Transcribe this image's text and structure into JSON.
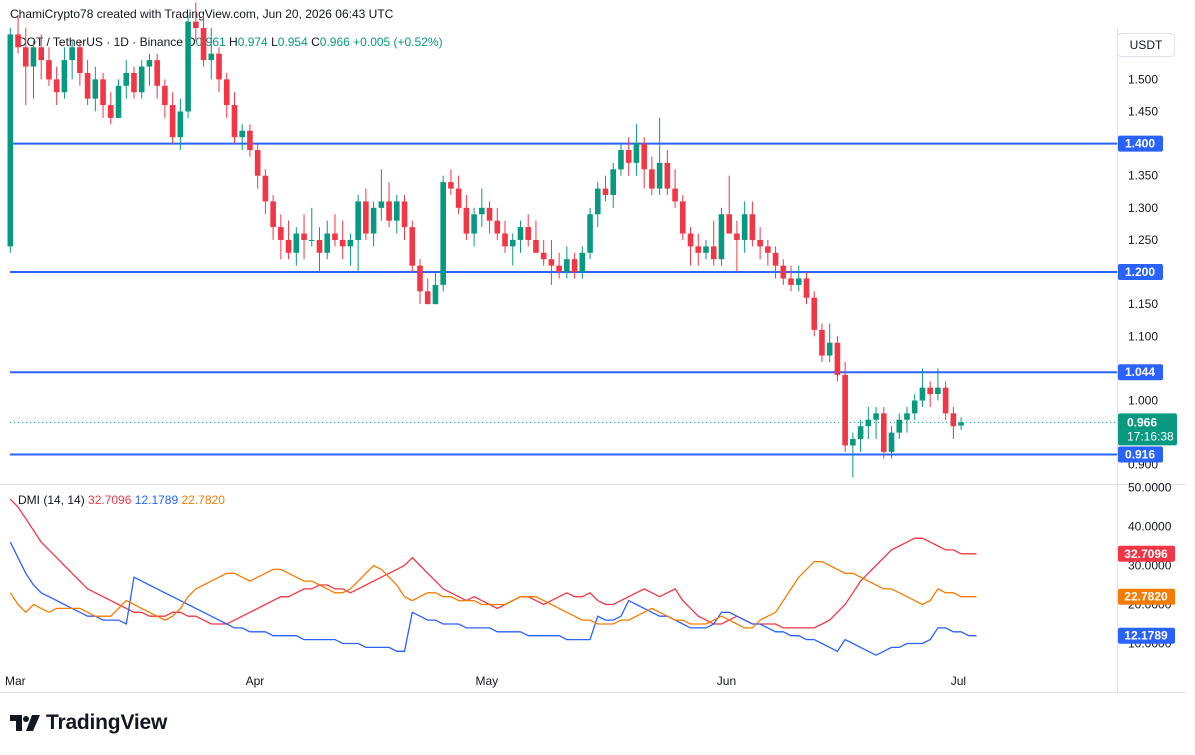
{
  "header": {
    "text": "ChamiCrypto78 created with TradingView.com, Jun 20, 2026 06:43 UTC"
  },
  "legend": {
    "symbol": "DOT / TetherUS · 1D · Binance",
    "o_label": "O",
    "o": "0.961",
    "h_label": "H",
    "h": "0.974",
    "l_label": "L",
    "l": "0.954",
    "c_label": "C",
    "c": "0.966",
    "change": "+0.005 (+0.52%)"
  },
  "currency": "USDT",
  "dmi_legend": {
    "name": "DMI (14, 14)",
    "v1": "32.7096",
    "v2": "12.1789",
    "v3": "22.7820"
  },
  "logo": {
    "text": "TradingView"
  },
  "colors": {
    "up": "#089981",
    "down": "#f23645",
    "level": "#2962ff",
    "di_plus": "#2962ff",
    "di_minus": "#f23645",
    "adx": "#f57c00"
  },
  "chart_data": [
    {
      "type": "candlestick",
      "title": "DOT / TetherUS · 1D · Binance",
      "ylim": [
        0.87,
        1.58
      ],
      "y_ticks": [
        "1.500",
        "1.450",
        "1.350",
        "1.300",
        "1.250",
        "1.150",
        "1.100",
        "1.000",
        "0.900"
      ],
      "x_ticks": [
        "Mar",
        "Apr",
        "May",
        "Jun",
        "Jul"
      ],
      "x_tick_days": [
        0,
        31,
        61,
        92,
        122
      ],
      "start_date": "2026-02-26",
      "horizontal_levels": [
        1.4,
        1.2,
        1.044,
        0.916
      ],
      "level_labels": [
        "1.400",
        "1.200",
        "1.044",
        "0.916"
      ],
      "last_price": "0.966",
      "countdown": "17:16:38",
      "candles": [
        [
          1.24,
          1.58,
          1.23,
          1.57
        ],
        [
          1.57,
          1.6,
          1.54,
          1.55
        ],
        [
          1.55,
          1.58,
          1.46,
          1.52
        ],
        [
          1.52,
          1.56,
          1.47,
          1.55
        ],
        [
          1.55,
          1.57,
          1.5,
          1.53
        ],
        [
          1.53,
          1.55,
          1.49,
          1.5
        ],
        [
          1.5,
          1.52,
          1.46,
          1.48
        ],
        [
          1.48,
          1.55,
          1.47,
          1.53
        ],
        [
          1.53,
          1.56,
          1.5,
          1.55
        ],
        [
          1.55,
          1.56,
          1.49,
          1.51
        ],
        [
          1.51,
          1.53,
          1.46,
          1.47
        ],
        [
          1.47,
          1.52,
          1.45,
          1.5
        ],
        [
          1.5,
          1.51,
          1.44,
          1.46
        ],
        [
          1.46,
          1.48,
          1.43,
          1.44
        ],
        [
          1.44,
          1.5,
          1.44,
          1.49
        ],
        [
          1.49,
          1.53,
          1.47,
          1.51
        ],
        [
          1.51,
          1.52,
          1.47,
          1.48
        ],
        [
          1.48,
          1.53,
          1.47,
          1.52
        ],
        [
          1.52,
          1.54,
          1.49,
          1.53
        ],
        [
          1.53,
          1.54,
          1.47,
          1.49
        ],
        [
          1.49,
          1.5,
          1.44,
          1.46
        ],
        [
          1.46,
          1.48,
          1.4,
          1.41
        ],
        [
          1.41,
          1.47,
          1.39,
          1.45
        ],
        [
          1.45,
          1.6,
          1.44,
          1.59
        ],
        [
          1.59,
          1.62,
          1.56,
          1.58
        ],
        [
          1.58,
          1.6,
          1.52,
          1.53
        ],
        [
          1.53,
          1.58,
          1.5,
          1.54
        ],
        [
          1.54,
          1.55,
          1.48,
          1.5
        ],
        [
          1.5,
          1.51,
          1.44,
          1.46
        ],
        [
          1.46,
          1.48,
          1.4,
          1.41
        ],
        [
          1.41,
          1.43,
          1.39,
          1.42
        ],
        [
          1.42,
          1.43,
          1.38,
          1.39
        ],
        [
          1.39,
          1.4,
          1.33,
          1.35
        ],
        [
          1.35,
          1.36,
          1.29,
          1.31
        ],
        [
          1.31,
          1.32,
          1.25,
          1.27
        ],
        [
          1.27,
          1.29,
          1.22,
          1.25
        ],
        [
          1.25,
          1.28,
          1.22,
          1.23
        ],
        [
          1.23,
          1.27,
          1.21,
          1.26
        ],
        [
          1.26,
          1.29,
          1.22,
          1.25
        ],
        [
          1.25,
          1.3,
          1.24,
          1.25
        ],
        [
          1.25,
          1.27,
          1.2,
          1.23
        ],
        [
          1.23,
          1.28,
          1.22,
          1.26
        ],
        [
          1.26,
          1.29,
          1.24,
          1.25
        ],
        [
          1.25,
          1.28,
          1.22,
          1.24
        ],
        [
          1.24,
          1.26,
          1.21,
          1.25
        ],
        [
          1.25,
          1.32,
          1.2,
          1.31
        ],
        [
          1.31,
          1.33,
          1.25,
          1.26
        ],
        [
          1.26,
          1.31,
          1.24,
          1.3
        ],
        [
          1.3,
          1.36,
          1.28,
          1.31
        ],
        [
          1.31,
          1.34,
          1.27,
          1.28
        ],
        [
          1.28,
          1.32,
          1.26,
          1.31
        ],
        [
          1.31,
          1.32,
          1.25,
          1.27
        ],
        [
          1.27,
          1.28,
          1.2,
          1.21
        ],
        [
          1.21,
          1.22,
          1.15,
          1.17
        ],
        [
          1.17,
          1.19,
          1.15,
          1.15
        ],
        [
          1.15,
          1.2,
          1.15,
          1.18
        ],
        [
          1.18,
          1.35,
          1.17,
          1.34
        ],
        [
          1.34,
          1.36,
          1.32,
          1.33
        ],
        [
          1.33,
          1.35,
          1.29,
          1.3
        ],
        [
          1.3,
          1.32,
          1.25,
          1.26
        ],
        [
          1.26,
          1.3,
          1.24,
          1.29
        ],
        [
          1.29,
          1.33,
          1.27,
          1.3
        ],
        [
          1.3,
          1.31,
          1.26,
          1.28
        ],
        [
          1.28,
          1.3,
          1.25,
          1.26
        ],
        [
          1.26,
          1.28,
          1.23,
          1.24
        ],
        [
          1.24,
          1.26,
          1.21,
          1.25
        ],
        [
          1.25,
          1.28,
          1.23,
          1.27
        ],
        [
          1.27,
          1.29,
          1.24,
          1.25
        ],
        [
          1.25,
          1.28,
          1.23,
          1.23
        ],
        [
          1.23,
          1.25,
          1.21,
          1.22
        ],
        [
          1.22,
          1.25,
          1.18,
          1.21
        ],
        [
          1.21,
          1.23,
          1.19,
          1.2
        ],
        [
          1.2,
          1.24,
          1.19,
          1.22
        ],
        [
          1.22,
          1.23,
          1.19,
          1.2
        ],
        [
          1.2,
          1.24,
          1.19,
          1.23
        ],
        [
          1.23,
          1.3,
          1.22,
          1.29
        ],
        [
          1.29,
          1.34,
          1.27,
          1.33
        ],
        [
          1.33,
          1.35,
          1.31,
          1.32
        ],
        [
          1.32,
          1.37,
          1.3,
          1.36
        ],
        [
          1.36,
          1.4,
          1.35,
          1.39
        ],
        [
          1.39,
          1.41,
          1.35,
          1.37
        ],
        [
          1.37,
          1.43,
          1.35,
          1.4
        ],
        [
          1.4,
          1.41,
          1.33,
          1.36
        ],
        [
          1.36,
          1.38,
          1.32,
          1.33
        ],
        [
          1.33,
          1.44,
          1.32,
          1.37
        ],
        [
          1.37,
          1.39,
          1.32,
          1.33
        ],
        [
          1.33,
          1.36,
          1.3,
          1.31
        ],
        [
          1.31,
          1.32,
          1.25,
          1.26
        ],
        [
          1.26,
          1.27,
          1.21,
          1.24
        ],
        [
          1.24,
          1.26,
          1.21,
          1.23
        ],
        [
          1.23,
          1.25,
          1.22,
          1.24
        ],
        [
          1.24,
          1.28,
          1.21,
          1.22
        ],
        [
          1.22,
          1.3,
          1.21,
          1.29
        ],
        [
          1.29,
          1.35,
          1.26,
          1.26
        ],
        [
          1.26,
          1.28,
          1.2,
          1.25
        ],
        [
          1.25,
          1.31,
          1.23,
          1.29
        ],
        [
          1.29,
          1.31,
          1.24,
          1.25
        ],
        [
          1.25,
          1.27,
          1.22,
          1.24
        ],
        [
          1.24,
          1.25,
          1.21,
          1.23
        ],
        [
          1.23,
          1.24,
          1.19,
          1.21
        ],
        [
          1.21,
          1.22,
          1.18,
          1.19
        ],
        [
          1.19,
          1.21,
          1.17,
          1.18
        ],
        [
          1.18,
          1.21,
          1.17,
          1.19
        ],
        [
          1.19,
          1.2,
          1.15,
          1.16
        ],
        [
          1.16,
          1.17,
          1.1,
          1.11
        ],
        [
          1.11,
          1.12,
          1.06,
          1.07
        ],
        [
          1.07,
          1.12,
          1.06,
          1.09
        ],
        [
          1.09,
          1.1,
          1.03,
          1.04
        ],
        [
          1.04,
          1.06,
          0.92,
          0.93
        ],
        [
          0.93,
          0.95,
          0.88,
          0.94
        ],
        [
          0.94,
          0.97,
          0.92,
          0.96
        ],
        [
          0.96,
          0.99,
          0.94,
          0.97
        ],
        [
          0.97,
          0.99,
          0.94,
          0.98
        ],
        [
          0.98,
          0.99,
          0.91,
          0.92
        ],
        [
          0.92,
          0.96,
          0.91,
          0.95
        ],
        [
          0.95,
          0.98,
          0.94,
          0.97
        ],
        [
          0.97,
          0.99,
          0.95,
          0.98
        ],
        [
          0.98,
          1.01,
          0.97,
          1.0
        ],
        [
          1.0,
          1.05,
          0.99,
          1.02
        ],
        [
          1.02,
          1.03,
          0.99,
          1.01
        ],
        [
          1.01,
          1.05,
          1.0,
          1.02
        ],
        [
          1.02,
          1.03,
          0.97,
          0.98
        ],
        [
          0.98,
          0.99,
          0.94,
          0.96
        ],
        [
          0.961,
          0.974,
          0.954,
          0.966
        ]
      ]
    },
    {
      "type": "line",
      "title": "DMI (14, 14)",
      "ylim": [
        5,
        55
      ],
      "y_ticks": [
        "50.0000",
        "40.0000",
        "30.0000",
        "20.0000",
        "10.0000"
      ],
      "series": [
        {
          "name": "32.7096",
          "color": "#f23645",
          "values": [
            47,
            45,
            42,
            39,
            36,
            34,
            32,
            30,
            28,
            26,
            24,
            23,
            22,
            21,
            20,
            19,
            18,
            18,
            17,
            17,
            17,
            18,
            18,
            17,
            17,
            16,
            15,
            15,
            15,
            16,
            17,
            18,
            19,
            20,
            21,
            22,
            22,
            23,
            24,
            24,
            25,
            25,
            24,
            24,
            23,
            24,
            25,
            26,
            27,
            28,
            29,
            30,
            32,
            30,
            28,
            26,
            24,
            23,
            22,
            21,
            22,
            21,
            20,
            19,
            20,
            21,
            22,
            22,
            21,
            20,
            21,
            22,
            23,
            22,
            22,
            23,
            21,
            20,
            20,
            21,
            22,
            23,
            24,
            23,
            22,
            23,
            24,
            21,
            19,
            17,
            16,
            15,
            15,
            16,
            17,
            16,
            15,
            15,
            15,
            15,
            14,
            14,
            14,
            14,
            14,
            15,
            16,
            18,
            20,
            23,
            26,
            28,
            30,
            32,
            34,
            35,
            36,
            37,
            37,
            36,
            35,
            34,
            34,
            33,
            33,
            33
          ]
        },
        {
          "name": "12.1789",
          "color": "#2962ff",
          "values": [
            36,
            32,
            28,
            25,
            23,
            22,
            21,
            20,
            19,
            18,
            17,
            17,
            16,
            16,
            16,
            15,
            27,
            26,
            25,
            24,
            23,
            22,
            21,
            20,
            19,
            18,
            17,
            16,
            15,
            14,
            14,
            13,
            13,
            13,
            12,
            12,
            12,
            12,
            11,
            11,
            11,
            11,
            11,
            10,
            10,
            10,
            9,
            9,
            9,
            9,
            8,
            8,
            18,
            17,
            16,
            16,
            15,
            15,
            15,
            14,
            14,
            14,
            14,
            13,
            13,
            13,
            13,
            12,
            12,
            12,
            12,
            12,
            11,
            11,
            11,
            11,
            17,
            16,
            16,
            17,
            21,
            20,
            19,
            18,
            17,
            17,
            16,
            15,
            14,
            14,
            14,
            15,
            18,
            18,
            17,
            16,
            15,
            15,
            14,
            13,
            13,
            12,
            12,
            11,
            11,
            10,
            9,
            8,
            11,
            10,
            9,
            8,
            7,
            8,
            9,
            9,
            10,
            10,
            10,
            11,
            14,
            14,
            13,
            13,
            12,
            12
          ]
        },
        {
          "name": "22.7820",
          "color": "#f57c00",
          "values": [
            23,
            20,
            18,
            20,
            19,
            18,
            19,
            19,
            19,
            19,
            18,
            17,
            17,
            17,
            19,
            21,
            20,
            19,
            18,
            17,
            16,
            17,
            19,
            22,
            24,
            25,
            26,
            27,
            28,
            28,
            27,
            26,
            27,
            28,
            29,
            29,
            28,
            27,
            26,
            26,
            25,
            24,
            23,
            23,
            24,
            26,
            28,
            30,
            29,
            27,
            25,
            22,
            21,
            22,
            23,
            23,
            22,
            22,
            21,
            21,
            21,
            20,
            20,
            20,
            20,
            21,
            22,
            22,
            22,
            21,
            20,
            19,
            18,
            17,
            16,
            16,
            15,
            15,
            15,
            16,
            16,
            17,
            18,
            19,
            18,
            17,
            16,
            16,
            15,
            15,
            15,
            16,
            17,
            16,
            15,
            14,
            14,
            16,
            17,
            18,
            21,
            24,
            27,
            29,
            31,
            31,
            30,
            29,
            28,
            28,
            27,
            26,
            25,
            24,
            24,
            23,
            22,
            21,
            20,
            21,
            24,
            23,
            23,
            22,
            22,
            22
          ]
        }
      ],
      "last_labels": [
        "32.7096",
        "22.7820",
        "12.1789"
      ]
    }
  ]
}
